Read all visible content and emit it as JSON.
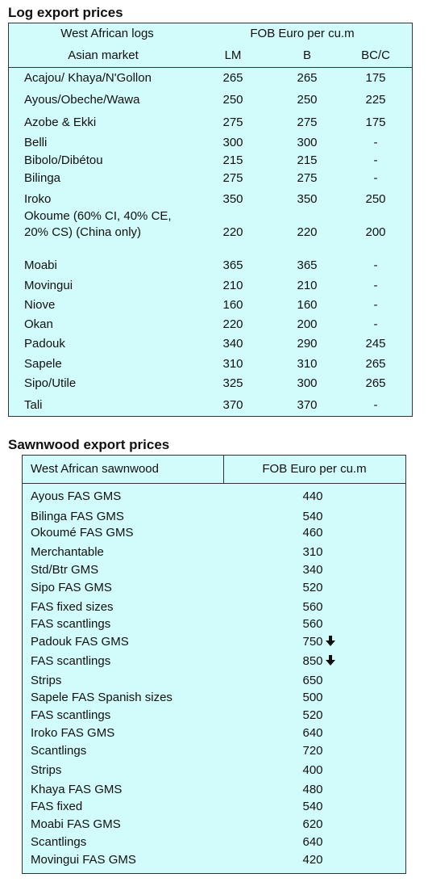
{
  "log_table": {
    "title": "Log export prices",
    "header": {
      "left_top": "West African logs",
      "right_top": "FOB Euro per cu.m",
      "left_bottom": "Asian market",
      "columns": [
        "LM",
        "B",
        "BC/C"
      ]
    },
    "rows": [
      [
        "Acajou/ Khaya/N'Gollon",
        "265",
        "265",
        "175"
      ],
      [
        "Ayous/Obeche/Wawa",
        "250",
        "250",
        "225"
      ],
      [
        "Azobe & Ekki",
        "275",
        "275",
        "175"
      ],
      [
        "Belli",
        "300",
        "300",
        "-"
      ],
      [
        "Bibolo/Dibétou",
        "215",
        "215",
        "-"
      ],
      [
        "Bilinga",
        "275",
        "275",
        "-"
      ],
      [
        "Iroko",
        "350",
        "350",
        "250"
      ],
      [
        "Okoume (60% CI, 40% CE, 20% CS) (China only)",
        "220",
        "220",
        "200"
      ],
      [
        "Moabi",
        "365",
        "365",
        "-"
      ],
      [
        "Movingui",
        "210",
        "210",
        "-"
      ],
      [
        "Niove",
        "160",
        "160",
        "-"
      ],
      [
        "Okan",
        "220",
        "200",
        "-"
      ],
      [
        "Padouk",
        "340",
        "290",
        "245"
      ],
      [
        "Sapele",
        "310",
        "310",
        "265"
      ],
      [
        "Sipo/Utile",
        "325",
        "300",
        "265"
      ],
      [
        "Tali",
        "370",
        "370",
        "-"
      ]
    ]
  },
  "sawn_table": {
    "title": "Sawnwood export prices",
    "header": [
      "West African sawnwood",
      "FOB Euro per cu.m"
    ],
    "rows": [
      [
        "Ayous FAS GMS",
        "440"
      ],
      [
        "Bilinga FAS GMS",
        "540"
      ],
      [
        "Okoumé FAS GMS",
        "460"
      ],
      [
        "Merchantable",
        "310"
      ],
      [
        "Std/Btr GMS",
        "340"
      ],
      [
        "Sipo FAS GMS",
        "520"
      ],
      [
        "FAS fixed sizes",
        "560"
      ],
      [
        "FAS scantlings",
        "560"
      ],
      [
        "Padouk FAS GMS",
        "750"
      ],
      [
        "FAS scantlings",
        "850"
      ],
      [
        "Strips",
        "650"
      ],
      [
        "Sapele FAS Spanish sizes",
        "500"
      ],
      [
        "FAS scantlings",
        "520"
      ],
      [
        "Iroko FAS GMS",
        "640"
      ],
      [
        "Scantlings",
        "720"
      ],
      [
        "Strips",
        "400"
      ],
      [
        "Khaya FAS GMS",
        "480"
      ],
      [
        "FAS fixed",
        "540"
      ],
      [
        "Moabi FAS GMS",
        "620"
      ],
      [
        "Scantlings",
        "640"
      ],
      [
        "Movingui FAS GMS",
        "420"
      ]
    ]
  }
}
